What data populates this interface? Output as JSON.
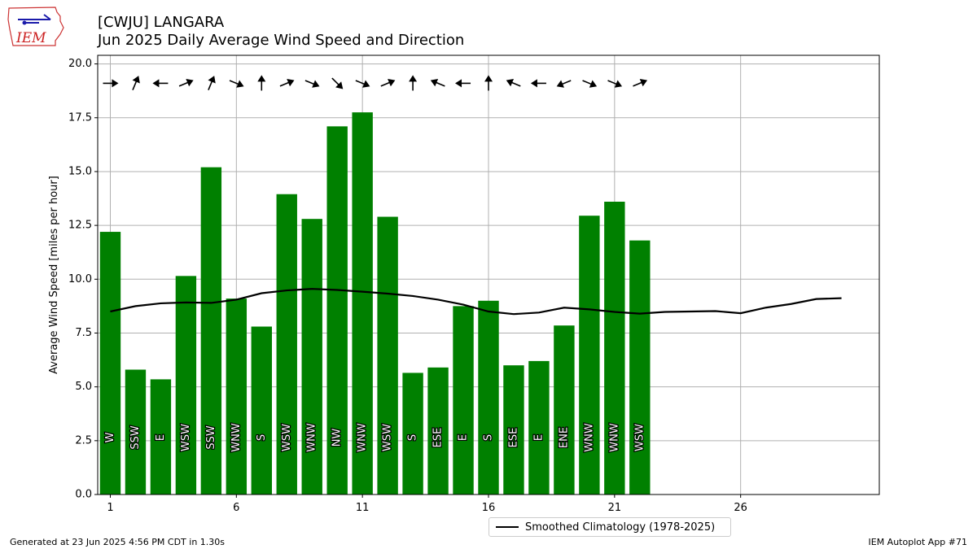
{
  "header": {
    "title": "[CWJU] LANGARA",
    "subtitle": "Jun 2025 Daily Average Wind Speed and Direction"
  },
  "logo": {
    "text": "IEM",
    "icon": "iowa-state-outline-icon"
  },
  "footer": {
    "generated": "Generated at 23 Jun 2025 4:56 PM CDT in 1.30s",
    "app": "IEM Autoplot App #71"
  },
  "colors": {
    "bars": "#008000",
    "climatology": "#000000",
    "grid": "#b0b0b0"
  },
  "chart_data": {
    "type": "bar",
    "ylabel": "Average Wind Speed [miles per hour]",
    "ylim": [
      0,
      20.4
    ],
    "xlim": [
      0.5,
      31.5
    ],
    "yticks": [
      "0.0",
      "2.5",
      "5.0",
      "7.5",
      "10.0",
      "12.5",
      "15.0",
      "17.5",
      "20.0"
    ],
    "xticks": [
      "1",
      "6",
      "11",
      "16",
      "21",
      "26"
    ],
    "grid": true,
    "legend_position": "below-center",
    "days": [
      1,
      2,
      3,
      4,
      5,
      6,
      7,
      8,
      9,
      10,
      11,
      12,
      13,
      14,
      15,
      16,
      17,
      18,
      19,
      20,
      21,
      22
    ],
    "values": [
      12.2,
      5.8,
      5.35,
      10.15,
      15.2,
      9.1,
      7.8,
      13.95,
      12.8,
      17.1,
      17.75,
      12.9,
      5.65,
      5.9,
      8.75,
      9.0,
      6.0,
      6.2,
      7.85,
      12.95,
      13.6,
      11.8
    ],
    "directions": [
      "W",
      "SSW",
      "E",
      "WSW",
      "SSW",
      "WNW",
      "S",
      "WSW",
      "WNW",
      "NW",
      "WNW",
      "WSW",
      "S",
      "ESE",
      "E",
      "S",
      "ESE",
      "E",
      "ENE",
      "WNW",
      "WNW",
      "WSW"
    ],
    "series": [
      {
        "name": "Smoothed Climatology (1978-2025)",
        "type": "line",
        "x": [
          1,
          2,
          3,
          4,
          5,
          6,
          7,
          8,
          9,
          10,
          11,
          12,
          13,
          14,
          15,
          16,
          17,
          18,
          19,
          20,
          21,
          22,
          23,
          24,
          25,
          26,
          27,
          28,
          29,
          30
        ],
        "values": [
          8.5,
          8.75,
          8.88,
          8.92,
          8.9,
          9.05,
          9.35,
          9.48,
          9.55,
          9.5,
          9.42,
          9.33,
          9.22,
          9.05,
          8.82,
          8.5,
          8.38,
          8.45,
          8.68,
          8.6,
          8.48,
          8.4,
          8.48,
          8.5,
          8.52,
          8.42,
          8.68,
          8.85,
          9.08,
          9.12
        ]
      }
    ]
  }
}
